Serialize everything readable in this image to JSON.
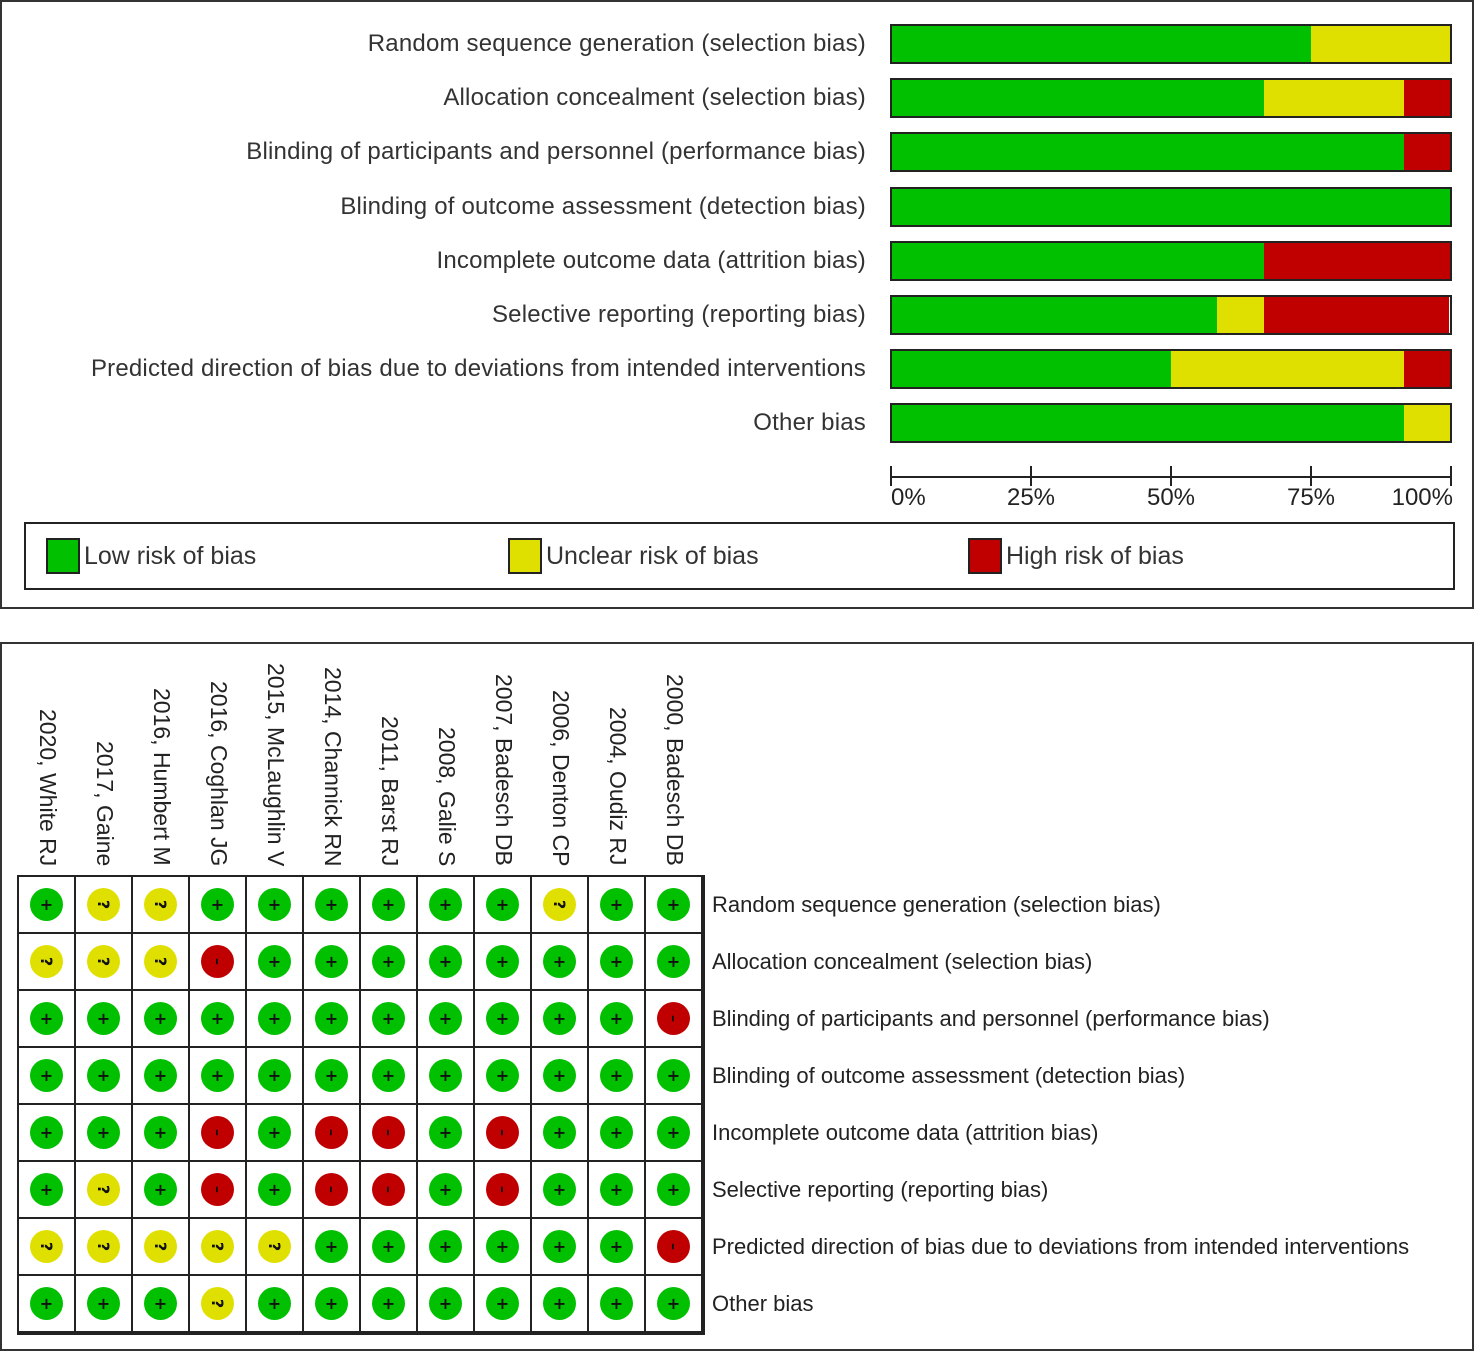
{
  "colors": {
    "low": "#00c000",
    "unclear": "#e0e000",
    "high": "#c00000"
  },
  "chart_data": [
    {
      "type": "bar",
      "subtype": "stacked-horizontal-100",
      "title": "Risk of bias graph",
      "categories": [
        "Random sequence generation (selection bias)",
        "Allocation concealment (selection bias)",
        "Blinding of participants and personnel (performance bias)",
        "Blinding of outcome assessment (detection bias)",
        "Incomplete outcome data (attrition bias)",
        "Selective reporting (reporting bias)",
        "Predicted direction of bias due to deviations from intended interventions",
        "Other bias"
      ],
      "series": [
        {
          "name": "Low risk of bias",
          "key": "low",
          "values": [
            75,
            66.7,
            91.7,
            100,
            66.7,
            58.3,
            50,
            91.7
          ]
        },
        {
          "name": "Unclear risk of bias",
          "key": "unclear",
          "values": [
            25,
            25,
            0,
            0,
            0,
            8.3,
            41.7,
            8.3
          ]
        },
        {
          "name": "High risk of bias",
          "key": "high",
          "values": [
            0,
            8.3,
            8.3,
            0,
            33.3,
            33.3,
            8.3,
            0
          ]
        }
      ],
      "xlim": [
        0,
        100
      ],
      "xticks": [
        "0%",
        "25%",
        "50%",
        "75%",
        "100%"
      ],
      "xlabel": "",
      "ylabel": "",
      "legend": [
        "Low risk of bias",
        "Unclear risk of bias",
        "High risk of bias"
      ],
      "legend_position": "bottom"
    },
    {
      "type": "table",
      "title": "Risk of bias summary",
      "studies": [
        "2020, White RJ",
        "2017, Gaine",
        "2016, Humbert M",
        "2016, Coghlan JG",
        "2015, McLaughlin V",
        "2014, Channick RN",
        "2011, Barst RJ",
        "2008, Galie S",
        "2007, Badesch DB",
        "2006, Denton CP",
        "2004, Oudiz RJ",
        "2000, Badesch DB"
      ],
      "domains": [
        "Random sequence generation (selection bias)",
        "Allocation concealment (selection bias)",
        "Blinding of participants and personnel (performance bias)",
        "Blinding of outcome assessment (detection bias)",
        "Incomplete outcome data (attrition bias)",
        "Selective reporting (reporting bias)",
        "Predicted direction of bias due to deviations from intended interventions",
        "Other bias"
      ],
      "judgements": [
        [
          "+",
          "?",
          "?",
          "+",
          "+",
          "+",
          "+",
          "+",
          "+",
          "?",
          "+",
          "+"
        ],
        [
          "?",
          "?",
          "?",
          "-",
          "+",
          "+",
          "+",
          "+",
          "+",
          "+",
          "+",
          "+"
        ],
        [
          "+",
          "+",
          "+",
          "+",
          "+",
          "+",
          "+",
          "+",
          "+",
          "+",
          "+",
          "-"
        ],
        [
          "+",
          "+",
          "+",
          "+",
          "+",
          "+",
          "+",
          "+",
          "+",
          "+",
          "+",
          "+"
        ],
        [
          "+",
          "+",
          "+",
          "-",
          "+",
          "-",
          "-",
          "+",
          "-",
          "+",
          "+",
          "+"
        ],
        [
          "+",
          "?",
          "+",
          "-",
          "+",
          "-",
          "-",
          "+",
          "-",
          "+",
          "+",
          "+"
        ],
        [
          "?",
          "?",
          "?",
          "?",
          "?",
          "+",
          "+",
          "+",
          "+",
          "+",
          "+",
          "-"
        ],
        [
          "+",
          "+",
          "+",
          "?",
          "+",
          "+",
          "+",
          "+",
          "+",
          "+",
          "+",
          "+"
        ]
      ],
      "symbol_legend": {
        "+": "low",
        "?": "unclear",
        "-": "high"
      }
    }
  ]
}
